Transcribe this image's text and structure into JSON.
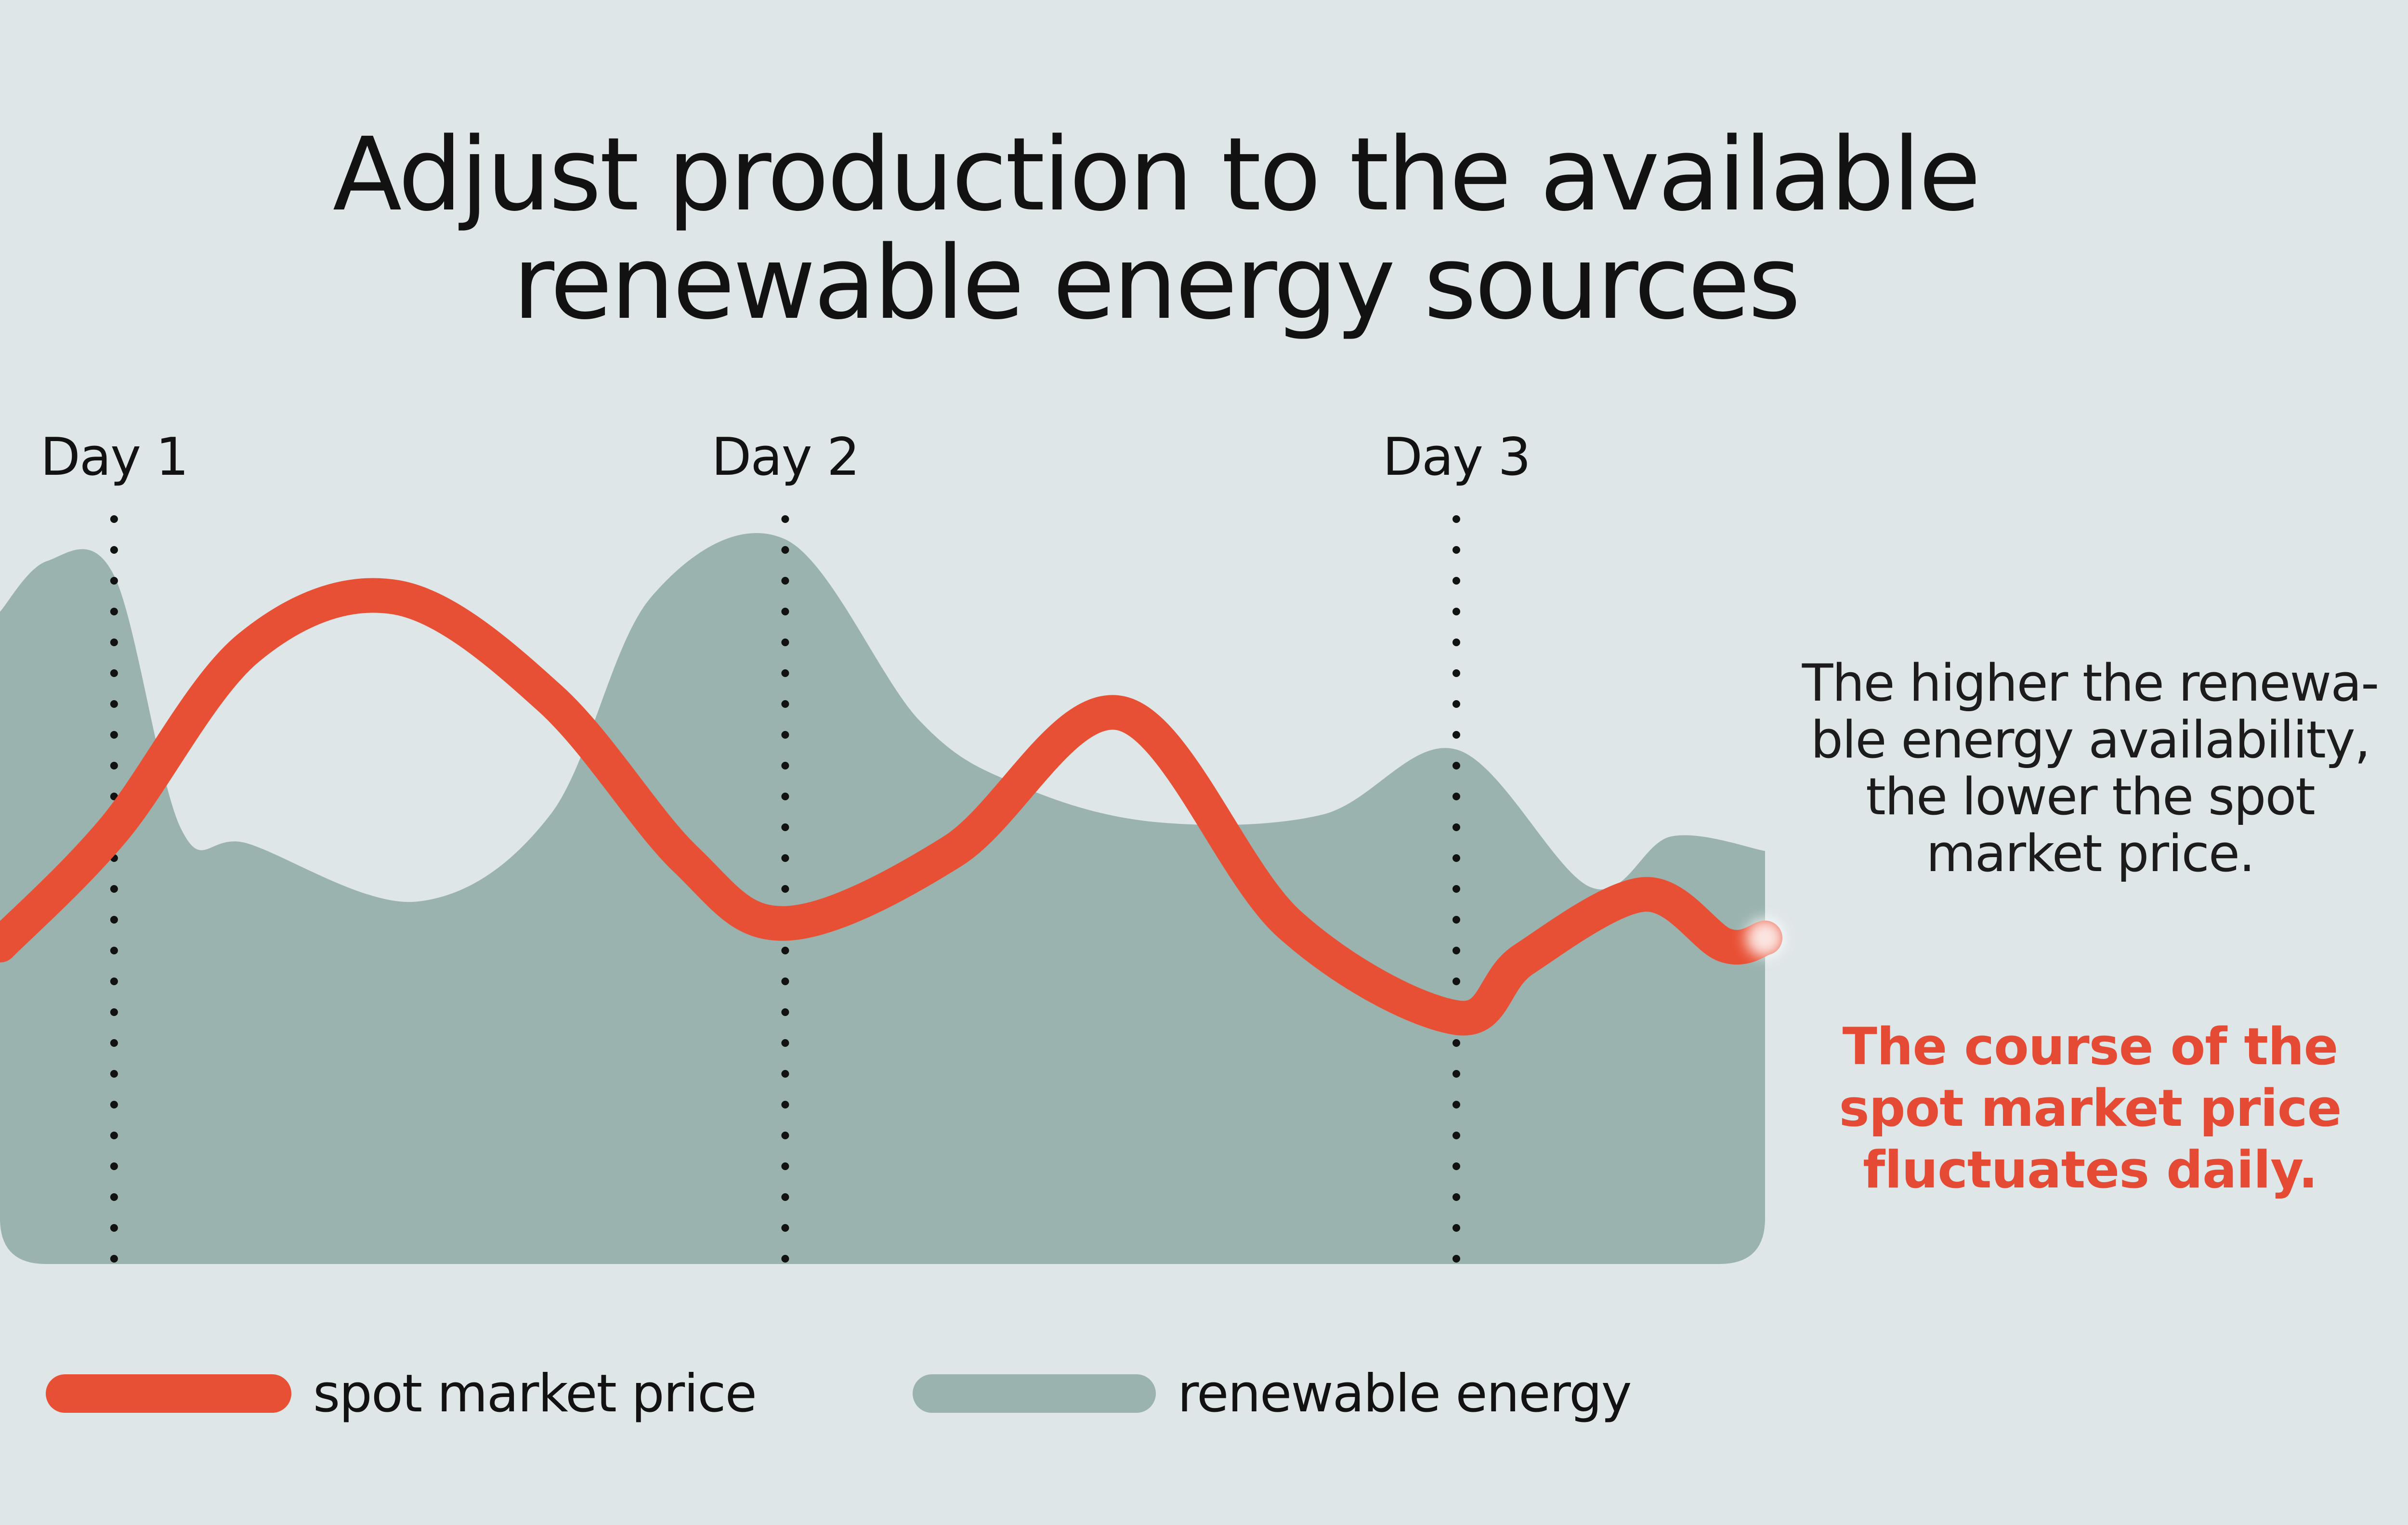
{
  "title": {
    "line1": "Adjust production to the available",
    "line2": "renewable energy sources"
  },
  "notes": {
    "note1": [
      "The higher the renewa-",
      "ble energy availability,",
      "the lower the spot",
      "market price."
    ],
    "note2": [
      "The course of the",
      "spot market price",
      "fluctuates daily."
    ]
  },
  "legend": [
    {
      "label": "spot market price",
      "color": "#e85035"
    },
    {
      "label": "renewable energy",
      "color": "#9ab3af"
    }
  ],
  "colors": {
    "background": "#dfe6e8",
    "price": "#e85035",
    "renewable": "#9ab3af",
    "text": "#121212",
    "highlight": "#e54a34"
  },
  "chart_data": {
    "type": "line",
    "title": "Adjust production to the available renewable energy sources",
    "xlabel": "",
    "ylabel": "",
    "x_unit": "days",
    "xlim": [
      0.83,
      3.46
    ],
    "ylim": [
      0,
      100
    ],
    "grid": false,
    "axes_visible": false,
    "legend_position": "bottom-left",
    "day_markers": [
      {
        "label": "Day 1",
        "x": 1.0
      },
      {
        "label": "Day 2",
        "x": 2.0
      },
      {
        "label": "Day 3",
        "x": 3.0
      }
    ],
    "series": [
      {
        "name": "renewable energy",
        "style": "area",
        "x": [
          0.83,
          0.9,
          1.0,
          1.1,
          1.2,
          1.45,
          1.65,
          1.8,
          2.0,
          2.2,
          2.35,
          2.55,
          2.8,
          3.0,
          3.2,
          3.32,
          3.46
        ],
        "values": [
          90,
          97,
          95,
          60,
          58,
          50,
          62,
          92,
          100,
          75,
          66,
          61,
          62,
          71,
          52,
          59,
          57
        ]
      },
      {
        "name": "spot market price",
        "style": "line",
        "x": [
          0.83,
          1.0,
          1.2,
          1.42,
          1.65,
          1.85,
          2.0,
          2.25,
          2.5,
          2.75,
          3.0,
          3.1,
          3.28,
          3.4,
          3.46
        ],
        "values": [
          44,
          60,
          85,
          92,
          78,
          56,
          47,
          57,
          76,
          47,
          34,
          42,
          51,
          44,
          45
        ]
      }
    ]
  }
}
